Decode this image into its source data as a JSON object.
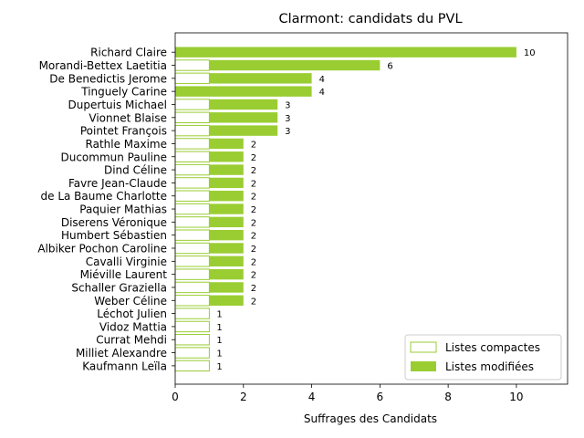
{
  "chart_data": {
    "type": "bar",
    "orientation": "horizontal",
    "title": "Clarmont: candidats du PVL",
    "xlabel": "Suffrages des Candidats",
    "ylabel": "",
    "xlim": [
      0,
      11.5
    ],
    "xticks": [
      "0",
      "2",
      "4",
      "6",
      "8",
      "10"
    ],
    "categories": [
      "Richard Claire",
      "Morandi-Bettex Laetitia",
      "De Benedictis Jerome",
      "Tinguely Carine",
      "Dupertuis Michael",
      "Vionnet Blaise",
      "Pointet François",
      "Rathle Maxime",
      "Ducommun Pauline",
      "Dind Céline",
      "Favre Jean-Claude",
      "de La Baume Charlotte",
      "Paquier Mathias",
      "Diserens Véronique",
      "Humbert Sébastien",
      "Albiker Pochon Caroline",
      "Cavalli Virginie",
      "Miéville Laurent",
      "Schaller Graziella",
      "Weber Céline",
      "Léchot Julien",
      "Vidoz Mattia",
      "Currat Mehdi",
      "Milliet Alexandre",
      "Kaufmann Leïla"
    ],
    "series": [
      {
        "name": "Listes compactes",
        "style": "outline",
        "values": [
          0,
          1,
          1,
          0,
          1,
          1,
          1,
          1,
          1,
          1,
          1,
          1,
          1,
          1,
          1,
          1,
          1,
          1,
          1,
          1,
          1,
          1,
          1,
          1,
          1
        ]
      },
      {
        "name": "Listes modifiées",
        "style": "filled",
        "values": [
          10,
          5,
          3,
          4,
          2,
          2,
          2,
          1,
          1,
          1,
          1,
          1,
          1,
          1,
          1,
          1,
          1,
          1,
          1,
          1,
          0,
          0,
          0,
          0,
          0
        ]
      }
    ],
    "totals": [
      "10",
      "6",
      "4",
      "4",
      "3",
      "3",
      "3",
      "2",
      "2",
      "2",
      "2",
      "2",
      "2",
      "2",
      "2",
      "2",
      "2",
      "2",
      "2",
      "2",
      "1",
      "1",
      "1",
      "1",
      "1"
    ],
    "legend_position": "lower-right",
    "grid": false,
    "colors": {
      "bar": "#9acd32",
      "axis": "#000000",
      "background": "#ffffff"
    }
  }
}
